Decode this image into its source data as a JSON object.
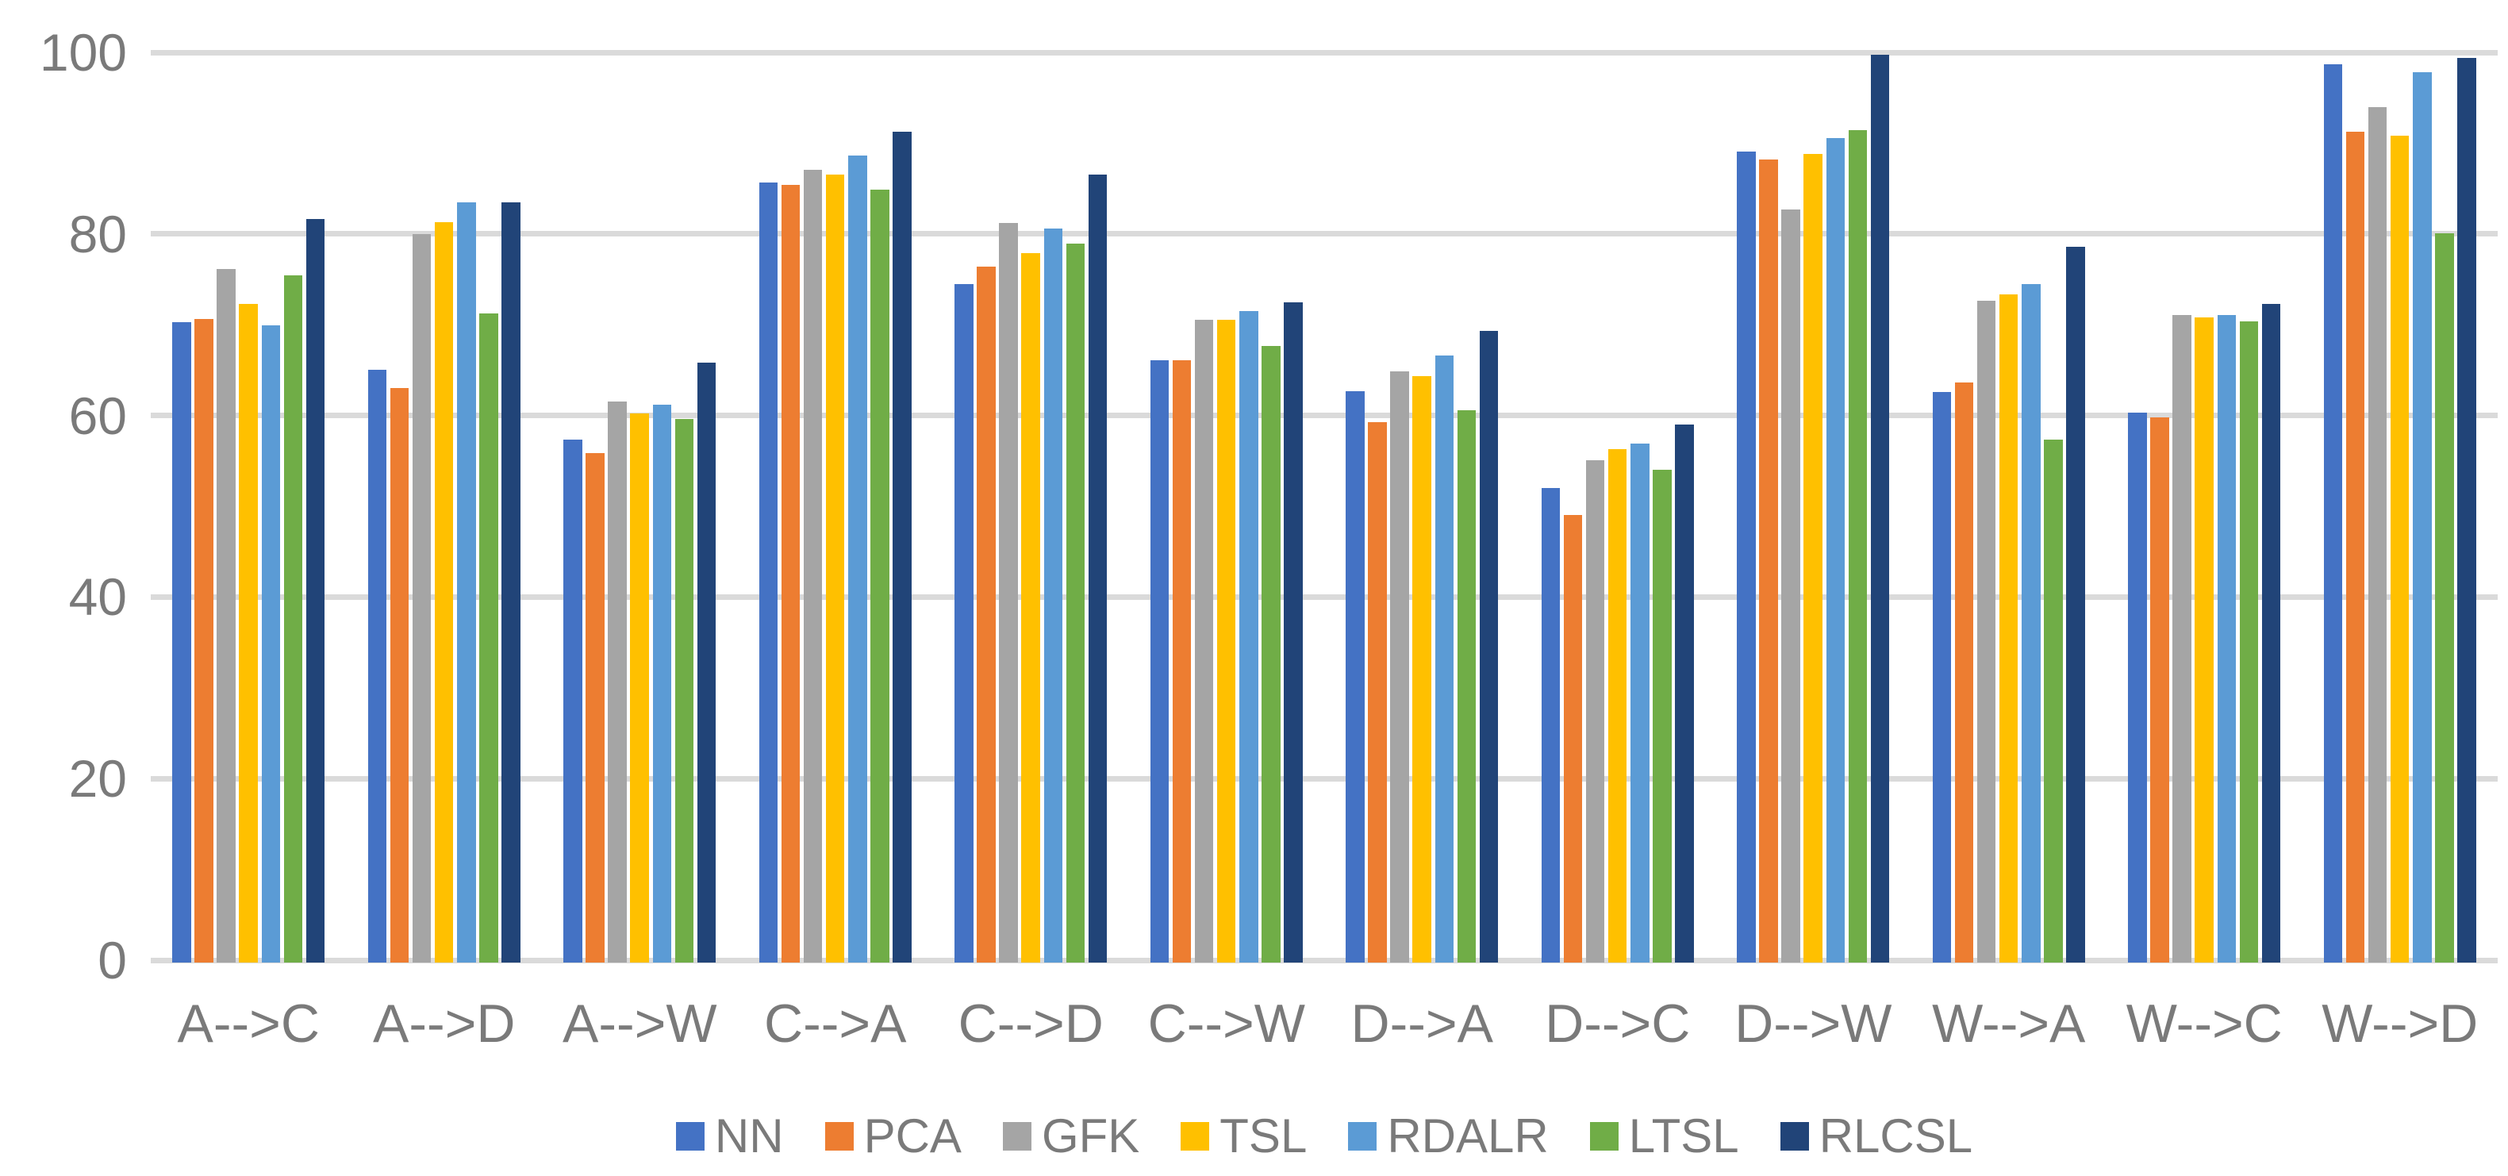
{
  "chart_data": {
    "type": "bar",
    "title": "",
    "xlabel": "",
    "ylabel": "",
    "categories": [
      "A-->C",
      "A-->D",
      "A-->W",
      "C-->A",
      "C-->D",
      "C-->W",
      "D-->A",
      "D-->C",
      "D-->W",
      "W-->A",
      "W-->C",
      "W-->D"
    ],
    "series": [
      {
        "name": "NN",
        "color": "#4472C4",
        "values": [
          70.3,
          65.0,
          57.3,
          85.7,
          74.5,
          66.1,
          62.7,
          52.0,
          89.1,
          62.6,
          60.3,
          98.7
        ]
      },
      {
        "name": "PCA",
        "color": "#ED7D31",
        "values": [
          70.6,
          63.0,
          55.9,
          85.4,
          76.4,
          66.1,
          59.3,
          49.0,
          88.2,
          63.6,
          59.8,
          91.3
        ]
      },
      {
        "name": "GFK",
        "color": "#A5A5A5",
        "values": [
          76.1,
          80.0,
          61.5,
          87.1,
          81.2,
          70.5,
          64.9,
          55.1,
          82.7,
          72.6,
          71.1,
          94.0
        ]
      },
      {
        "name": "TSL",
        "color": "#FFC000",
        "values": [
          72.3,
          81.3,
          60.2,
          86.5,
          77.9,
          70.5,
          64.3,
          56.3,
          88.8,
          73.3,
          70.8,
          90.8
        ]
      },
      {
        "name": "RDALR",
        "color": "#5B9BD5",
        "values": [
          69.9,
          83.5,
          61.2,
          88.6,
          80.6,
          71.5,
          66.6,
          56.9,
          90.6,
          74.5,
          71.1,
          97.8
        ]
      },
      {
        "name": "LTSL",
        "color": "#70AD47",
        "values": [
          75.4,
          71.2,
          59.6,
          84.9,
          78.9,
          67.7,
          60.6,
          54.0,
          91.4,
          57.3,
          70.4,
          80.1
        ]
      },
      {
        "name": "RLCSL",
        "color": "#214478",
        "values": [
          81.6,
          83.5,
          65.8,
          91.3,
          86.5,
          72.5,
          69.3,
          59.0,
          99.7,
          78.6,
          72.3,
          99.4
        ]
      }
    ],
    "ylim": [
      0,
      100
    ],
    "yticks": [
      0,
      20,
      40,
      60,
      80,
      100
    ],
    "legend_position": "bottom",
    "grid": "horizontal",
    "colors": {
      "grid": "#DADADA",
      "axis_text": "#7A7A7A",
      "background": "#FFFFFF"
    }
  }
}
